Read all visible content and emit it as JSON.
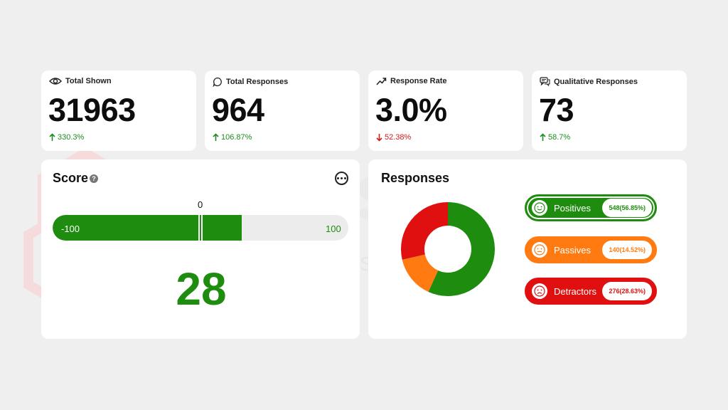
{
  "colors": {
    "positive": "#1e8c0e",
    "passive": "#ff7a10",
    "detractor": "#e01010",
    "up": "#1f8b1f",
    "down": "#d11b1b"
  },
  "watermark": {
    "brand_a": "Stats",
    "brand_b": "work",
    "tagline": "Pioneer Statistical Consulting since 2001"
  },
  "stats": [
    {
      "label": "Total Shown",
      "icon": "eye-icon",
      "value": "31963",
      "change": "330.3%",
      "direction": "up"
    },
    {
      "label": "Total Responses",
      "icon": "speech-bubble-icon",
      "value": "964",
      "change": "106.87%",
      "direction": "up"
    },
    {
      "label": "Response Rate",
      "icon": "trend-up-icon",
      "value": "3.0%",
      "change": "52.38%",
      "direction": "down"
    },
    {
      "label": "Qualitative Responses",
      "icon": "chat-icon",
      "value": "73",
      "change": "58.7%",
      "direction": "up"
    }
  ],
  "score": {
    "title": "Score",
    "help_icon": "question-icon",
    "menu_icon": "more-icon",
    "min_label": "-100",
    "max_label": "100",
    "zero_label": "0",
    "value": "28",
    "value_num": 28
  },
  "responses": {
    "title": "Responses",
    "items": [
      {
        "name": "Positives",
        "count": "548(56.85%)",
        "fraction": 0.5685,
        "face": "smile-face-icon",
        "key": "positive"
      },
      {
        "name": "Passives",
        "count": "140(14.52%)",
        "fraction": 0.1452,
        "face": "neutral-face-icon",
        "key": "passive"
      },
      {
        "name": "Detractors",
        "count": "276(28.63%)",
        "fraction": 0.2863,
        "face": "sad-face-icon",
        "key": "detractor"
      }
    ]
  }
}
